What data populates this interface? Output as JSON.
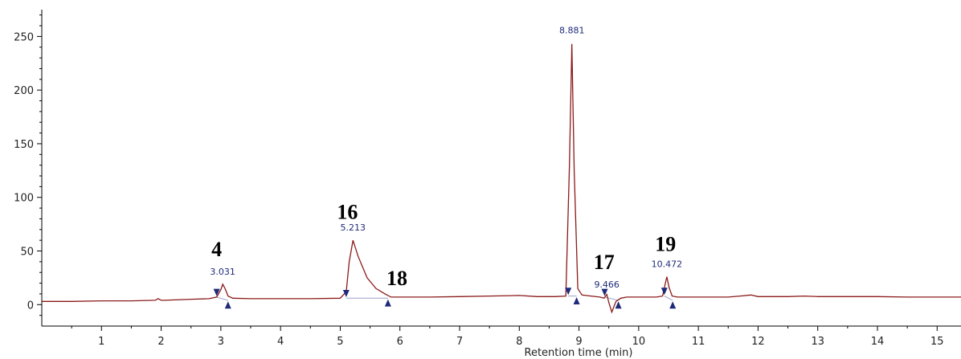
{
  "chart_data": {
    "type": "line",
    "title": "",
    "xlabel": "Retention time (min)",
    "ylabel": "",
    "xlim": [
      0,
      15.4
    ],
    "ylim": [
      -20,
      275
    ],
    "x_major_ticks": [
      1,
      2,
      3,
      4,
      5,
      6,
      7,
      8,
      9,
      10,
      11,
      12,
      13,
      14,
      15
    ],
    "y_major_ticks": [
      0,
      50,
      100,
      150,
      200,
      250
    ],
    "grid": false,
    "legend": "none",
    "colors": {
      "trace": "#8b1a1a",
      "baseline": "#9aa0c8",
      "marker": "#1f2a7a"
    },
    "series": [
      {
        "x": [
          0,
          0.5,
          1,
          1.5,
          1.9,
          1.95,
          2.0,
          2.05,
          2.5,
          2.8,
          2.93,
          3.0,
          3.031,
          3.07,
          3.12,
          3.2,
          3.5,
          4.0,
          4.5,
          5.0,
          5.1,
          5.15,
          5.213,
          5.3,
          5.45,
          5.6,
          5.75,
          5.85,
          6.0,
          6.5,
          7.0,
          7.5,
          8.0,
          8.3,
          8.6,
          8.78,
          8.84,
          8.881,
          8.92,
          8.98,
          9.05,
          9.2,
          9.35,
          9.42,
          9.466,
          9.5,
          9.55,
          9.62,
          9.7,
          9.8,
          10.0,
          10.3,
          10.4,
          10.44,
          10.472,
          10.51,
          10.56,
          10.65,
          11.0,
          11.5,
          11.7,
          11.88,
          12.0,
          12.5,
          12.78,
          13.0,
          13.5,
          14.0,
          14.5,
          15.0,
          15.4
        ],
        "y": [
          3,
          3,
          3.5,
          3.5,
          4,
          5.5,
          4,
          4,
          5,
          5.5,
          7,
          14,
          19,
          15,
          8,
          6,
          5.5,
          5.5,
          5.5,
          6,
          12,
          40,
          60,
          45,
          25,
          15,
          10,
          7,
          7,
          7,
          7.5,
          8,
          8.5,
          7.5,
          7.5,
          8,
          130,
          243,
          125,
          15,
          9,
          8,
          7,
          6,
          9.466,
          2,
          -7,
          3,
          6,
          7,
          7,
          7,
          8,
          18,
          26,
          16,
          8,
          7,
          7,
          7,
          8,
          9,
          7.5,
          7.5,
          8,
          7.5,
          7.5,
          7.5,
          7,
          7,
          7
        ]
      }
    ],
    "peaks": [
      {
        "rt_label": "3.031",
        "number": "4",
        "x": 3.031,
        "y": 19,
        "start_x": 2.93,
        "start_y": 7,
        "end_x": 3.12,
        "end_y": 4
      },
      {
        "rt_label": "5.213",
        "number": "16",
        "x": 5.213,
        "y": 60,
        "start_x": 5.1,
        "start_y": 6,
        "end_x": 5.8,
        "end_y": 6,
        "number2": "18"
      },
      {
        "rt_label": "8.881",
        "number": "",
        "x": 8.881,
        "y": 243,
        "start_x": 8.82,
        "start_y": 8,
        "end_x": 8.96,
        "end_y": 8
      },
      {
        "rt_label": "9.466",
        "number": "17",
        "x": 9.466,
        "y": 9.466,
        "start_x": 9.43,
        "start_y": 7,
        "end_x": 9.66,
        "end_y": 4
      },
      {
        "rt_label": "10.472",
        "number": "19",
        "x": 10.472,
        "y": 26,
        "start_x": 10.43,
        "start_y": 8,
        "end_x": 10.57,
        "end_y": 4
      }
    ]
  }
}
